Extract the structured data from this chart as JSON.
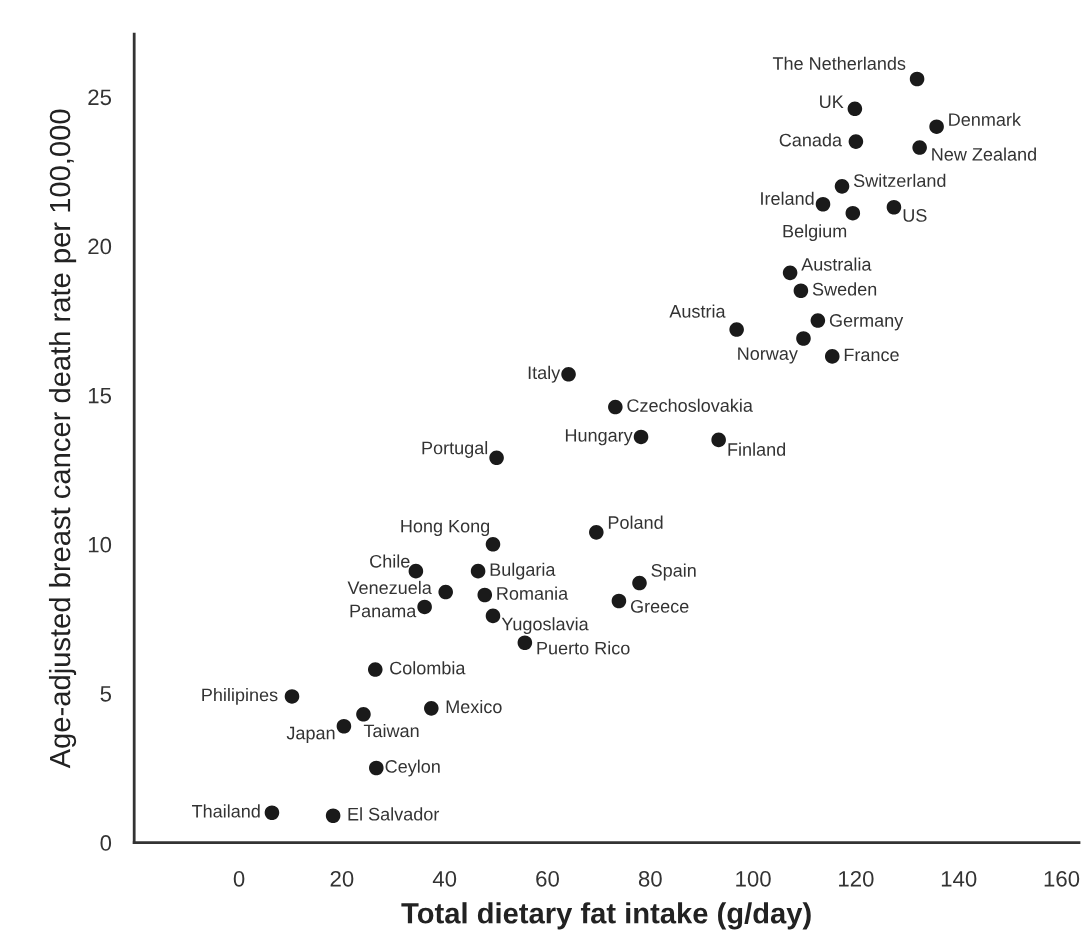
{
  "chart_data": {
    "type": "scatter",
    "xlabel": "Total dietary fat intake (g/day)",
    "ylabel": "Age-adjusted breast cancer death rate per 100,000",
    "xlim": [
      -20.4,
      163.4
    ],
    "ylim": [
      0,
      27.1
    ],
    "xticks": [
      0,
      20,
      40,
      60,
      80,
      100,
      120,
      140,
      160
    ],
    "yticks": [
      0,
      5,
      10,
      15,
      20,
      25
    ],
    "grid": false,
    "marker": "circle",
    "series": [
      {
        "color": "#1a1a1a",
        "x": [
          131.9,
          119.8,
          135.7,
          120.0,
          132.4,
          117.3,
          113.6,
          119.4,
          127.4,
          107.2,
          109.3,
          112.6,
          96.8,
          109.8,
          115.4,
          64.1,
          73.2,
          78.2,
          93.3,
          50.1,
          49.4,
          34.4,
          46.5,
          40.2,
          47.8,
          36.1,
          49.4,
          55.6,
          26.5,
          10.3,
          37.4,
          24.2,
          20.4,
          26.7,
          6.4,
          18.3,
          69.5,
          77.9,
          73.9
        ],
        "values": [
          25.6,
          24.6,
          24.0,
          23.5,
          23.3,
          22.0,
          21.4,
          21.1,
          21.3,
          19.1,
          18.5,
          17.5,
          17.2,
          16.9,
          16.3,
          15.7,
          14.6,
          13.6,
          13.5,
          12.9,
          10.0,
          9.1,
          9.1,
          8.4,
          8.3,
          7.9,
          7.6,
          6.7,
          5.8,
          4.9,
          4.5,
          4.3,
          3.9,
          2.5,
          1.0,
          0.9,
          10.4,
          8.7,
          8.1
        ]
      }
    ],
    "annotations": [
      {
        "text": "The Netherlands",
        "x": 131.9,
        "y": 25.6
      },
      {
        "text": "UK",
        "x": 119.8,
        "y": 24.6
      },
      {
        "text": "Denmark",
        "x": 135.7,
        "y": 24.0
      },
      {
        "text": "Canada",
        "x": 120.0,
        "y": 23.5
      },
      {
        "text": "New Zealand",
        "x": 132.4,
        "y": 23.3
      },
      {
        "text": "Switzerland",
        "x": 117.3,
        "y": 22.0
      },
      {
        "text": "Ireland",
        "x": 113.6,
        "y": 21.4
      },
      {
        "text": "Belgium",
        "x": 119.4,
        "y": 21.1
      },
      {
        "text": "US",
        "x": 127.4,
        "y": 21.3
      },
      {
        "text": "Australia",
        "x": 107.2,
        "y": 19.1
      },
      {
        "text": "Sweden",
        "x": 109.3,
        "y": 18.5
      },
      {
        "text": "Germany",
        "x": 112.6,
        "y": 17.5
      },
      {
        "text": "Austria",
        "x": 96.8,
        "y": 17.2
      },
      {
        "text": "Norway",
        "x": 109.8,
        "y": 16.9
      },
      {
        "text": "France",
        "x": 115.4,
        "y": 16.3
      },
      {
        "text": "Italy",
        "x": 64.1,
        "y": 15.7
      },
      {
        "text": "Czechoslovakia",
        "x": 73.2,
        "y": 14.6
      },
      {
        "text": "Hungary",
        "x": 78.2,
        "y": 13.6
      },
      {
        "text": "Finland",
        "x": 93.3,
        "y": 13.5
      },
      {
        "text": "Portugal",
        "x": 50.1,
        "y": 12.9
      },
      {
        "text": "Hong Kong",
        "x": 49.4,
        "y": 10.0
      },
      {
        "text": "Chile",
        "x": 34.4,
        "y": 9.1
      },
      {
        "text": "Bulgaria",
        "x": 46.5,
        "y": 9.1
      },
      {
        "text": "Venezuela",
        "x": 40.2,
        "y": 8.4
      },
      {
        "text": "Romania",
        "x": 47.8,
        "y": 8.3
      },
      {
        "text": "Panama",
        "x": 36.1,
        "y": 7.9
      },
      {
        "text": "Yugoslavia",
        "x": 49.4,
        "y": 7.6
      },
      {
        "text": "Puerto Rico",
        "x": 55.6,
        "y": 6.7
      },
      {
        "text": "Colombia",
        "x": 26.5,
        "y": 5.8
      },
      {
        "text": "Philipines",
        "x": 10.3,
        "y": 4.9
      },
      {
        "text": "Mexico",
        "x": 37.4,
        "y": 4.5
      },
      {
        "text": "Taiwan",
        "x": 24.2,
        "y": 4.3
      },
      {
        "text": "Japan",
        "x": 20.4,
        "y": 3.9
      },
      {
        "text": "Ceylon",
        "x": 26.7,
        "y": 2.5
      },
      {
        "text": "Thailand",
        "x": 6.4,
        "y": 1.0
      },
      {
        "text": "El Salvador",
        "x": 18.3,
        "y": 0.9
      },
      {
        "text": "Poland",
        "x": 69.5,
        "y": 10.4
      },
      {
        "text": "Spain",
        "x": 77.9,
        "y": 8.7
      },
      {
        "text": "Greece",
        "x": 73.9,
        "y": 8.1
      }
    ]
  }
}
